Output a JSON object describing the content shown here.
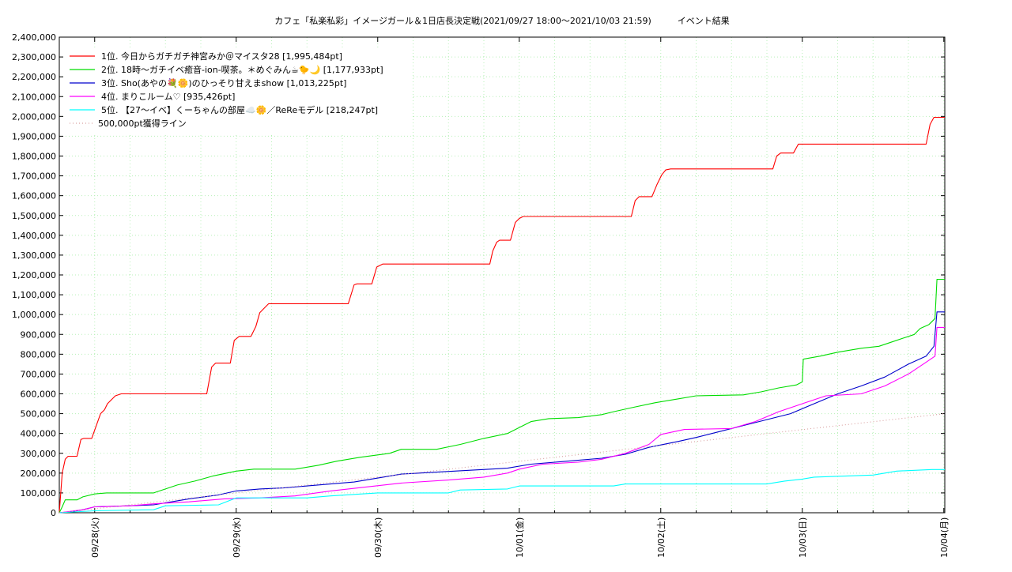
{
  "chart_data": {
    "type": "line",
    "title": "カフェ「私楽私彩」イメージガール＆1日店長決定戦(2021/09/27 18:00～2021/10/03 21:59)　　　イベント結果",
    "xlabel": "",
    "ylabel": "",
    "ylim": [
      0,
      2400000
    ],
    "yticks": [
      "0",
      "100,000",
      "200,000",
      "300,000",
      "400,000",
      "500,000",
      "600,000",
      "700,000",
      "800,000",
      "900,000",
      "1,000,000",
      "1,100,000",
      "1,200,000",
      "1,300,000",
      "1,400,000",
      "1,500,000",
      "1,600,000",
      "1,700,000",
      "1,800,000",
      "1,900,000",
      "2,000,000",
      "2,100,000",
      "2,200,000",
      "2,300,000",
      "2,400,000"
    ],
    "x_start": "2021-09-27 18:00",
    "x_end": "2021-10-04 00:10",
    "xticks": [
      {
        "date": "2021-09-28 00:00",
        "label": "09/28(火)"
      },
      {
        "date": "2021-09-29 00:00",
        "label": "09/29(水)"
      },
      {
        "date": "2021-09-30 00:00",
        "label": "09/30(木)"
      },
      {
        "date": "2021-10-01 00:00",
        "label": "10/01(金)"
      },
      {
        "date": "2021-10-02 00:00",
        "label": "10/02(土)"
      },
      {
        "date": "2021-10-03 00:00",
        "label": "10/03(日)"
      },
      {
        "date": "2021-10-04 00:00",
        "label": "10/04(月)"
      }
    ],
    "grid": true,
    "legend_position": "top-left",
    "series": [
      {
        "name": "1位. 今日からガチガチ神宮みか＠マイスタ28 [1,995,484pt]",
        "color": "#ff0000",
        "points": [
          [
            "2021-09-27 18:00",
            0
          ],
          [
            "2021-09-27 18:30",
            200000
          ],
          [
            "2021-09-27 19:00",
            270000
          ],
          [
            "2021-09-27 19:30",
            285000
          ],
          [
            "2021-09-27 21:00",
            285000
          ],
          [
            "2021-09-27 21:40",
            370000
          ],
          [
            "2021-09-27 22:10",
            375000
          ],
          [
            "2021-09-27 23:30",
            375000
          ],
          [
            "2021-09-28 01:00",
            500000
          ],
          [
            "2021-09-28 01:40",
            520000
          ],
          [
            "2021-09-28 02:10",
            550000
          ],
          [
            "2021-09-28 03:30",
            590000
          ],
          [
            "2021-09-28 04:30",
            600000
          ],
          [
            "2021-09-28 19:00",
            600000
          ],
          [
            "2021-09-28 19:50",
            735000
          ],
          [
            "2021-09-28 20:30",
            755000
          ],
          [
            "2021-09-28 23:00",
            755000
          ],
          [
            "2021-09-28 23:40",
            870000
          ],
          [
            "2021-09-29 00:30",
            890000
          ],
          [
            "2021-09-29 02:30",
            890000
          ],
          [
            "2021-09-29 03:20",
            940000
          ],
          [
            "2021-09-29 04:00",
            1010000
          ],
          [
            "2021-09-29 04:40",
            1030000
          ],
          [
            "2021-09-29 05:30",
            1055000
          ],
          [
            "2021-09-29 19:00",
            1055000
          ],
          [
            "2021-09-29 20:00",
            1150000
          ],
          [
            "2021-09-29 20:30",
            1155000
          ],
          [
            "2021-09-29 23:00",
            1155000
          ],
          [
            "2021-09-29 23:50",
            1240000
          ],
          [
            "2021-09-30 00:50",
            1255000
          ],
          [
            "2021-09-30 19:00",
            1255000
          ],
          [
            "2021-09-30 19:30",
            1320000
          ],
          [
            "2021-09-30 20:10",
            1365000
          ],
          [
            "2021-09-30 20:40",
            1375000
          ],
          [
            "2021-09-30 22:30",
            1375000
          ],
          [
            "2021-09-30 23:20",
            1465000
          ],
          [
            "2021-10-01 00:00",
            1485000
          ],
          [
            "2021-10-01 00:40",
            1495000
          ],
          [
            "2021-10-01 19:00",
            1495000
          ],
          [
            "2021-10-01 19:40",
            1575000
          ],
          [
            "2021-10-01 20:20",
            1595000
          ],
          [
            "2021-10-01 22:30",
            1595000
          ],
          [
            "2021-10-01 23:20",
            1655000
          ],
          [
            "2021-10-02 00:10",
            1705000
          ],
          [
            "2021-10-02 00:50",
            1730000
          ],
          [
            "2021-10-02 01:40",
            1735000
          ],
          [
            "2021-10-02 19:00",
            1735000
          ],
          [
            "2021-10-02 19:40",
            1800000
          ],
          [
            "2021-10-02 20:20",
            1815000
          ],
          [
            "2021-10-02 22:30",
            1815000
          ],
          [
            "2021-10-02 23:20",
            1860000
          ],
          [
            "2021-10-03 21:00",
            1860000
          ],
          [
            "2021-10-03 21:40",
            1960000
          ],
          [
            "2021-10-03 22:20",
            1995484
          ],
          [
            "2021-10-04 00:10",
            1995484
          ]
        ]
      },
      {
        "name": "2位. 18時〜ガチイベ癒音-ion-喫茶。＊めぐみん☕🐤🌙 [1,177,933pt]",
        "color": "#00dd00",
        "points": [
          [
            "2021-09-27 18:00",
            0
          ],
          [
            "2021-09-27 18:30",
            30000
          ],
          [
            "2021-09-27 19:00",
            65000
          ],
          [
            "2021-09-27 21:00",
            65000
          ],
          [
            "2021-09-27 22:00",
            80000
          ],
          [
            "2021-09-28 00:00",
            95000
          ],
          [
            "2021-09-28 02:00",
            100000
          ],
          [
            "2021-09-28 10:00",
            100000
          ],
          [
            "2021-09-28 12:00",
            120000
          ],
          [
            "2021-09-28 14:00",
            140000
          ],
          [
            "2021-09-28 17:00",
            160000
          ],
          [
            "2021-09-28 20:00",
            185000
          ],
          [
            "2021-09-29 00:00",
            210000
          ],
          [
            "2021-09-29 03:00",
            220000
          ],
          [
            "2021-09-29 10:00",
            220000
          ],
          [
            "2021-09-29 14:00",
            240000
          ],
          [
            "2021-09-29 17:00",
            260000
          ],
          [
            "2021-09-29 21:00",
            280000
          ],
          [
            "2021-09-30 02:00",
            300000
          ],
          [
            "2021-09-30 04:00",
            320000
          ],
          [
            "2021-09-30 10:00",
            320000
          ],
          [
            "2021-09-30 14:00",
            345000
          ],
          [
            "2021-09-30 18:00",
            375000
          ],
          [
            "2021-09-30 22:00",
            400000
          ],
          [
            "2021-10-01 00:00",
            430000
          ],
          [
            "2021-10-01 02:00",
            460000
          ],
          [
            "2021-10-01 05:00",
            475000
          ],
          [
            "2021-10-01 10:00",
            480000
          ],
          [
            "2021-10-01 14:00",
            495000
          ],
          [
            "2021-10-01 16:00",
            510000
          ],
          [
            "2021-10-01 19:00",
            530000
          ],
          [
            "2021-10-01 23:00",
            555000
          ],
          [
            "2021-10-02 03:00",
            575000
          ],
          [
            "2021-10-02 06:00",
            590000
          ],
          [
            "2021-10-02 14:00",
            595000
          ],
          [
            "2021-10-02 17:00",
            610000
          ],
          [
            "2021-10-02 20:00",
            630000
          ],
          [
            "2021-10-02 23:00",
            645000
          ],
          [
            "2021-10-03 00:00",
            660000
          ],
          [
            "2021-10-03 00:10",
            775000
          ],
          [
            "2021-10-03 03:00",
            790000
          ],
          [
            "2021-10-03 06:00",
            810000
          ],
          [
            "2021-10-03 10:00",
            830000
          ],
          [
            "2021-10-03 13:00",
            840000
          ],
          [
            "2021-10-03 15:00",
            860000
          ],
          [
            "2021-10-03 19:00",
            900000
          ],
          [
            "2021-10-03 20:00",
            930000
          ],
          [
            "2021-10-03 21:30",
            950000
          ],
          [
            "2021-10-03 22:30",
            980000
          ],
          [
            "2021-10-03 22:50",
            1177933
          ],
          [
            "2021-10-04 00:10",
            1177933
          ]
        ]
      },
      {
        "name": "3位. Sho(あやの💐🌼)のひっそり甘えまshow [1,013,225pt]",
        "color": "#0000cc",
        "points": [
          [
            "2021-09-27 18:00",
            0
          ],
          [
            "2021-09-27 20:00",
            5000
          ],
          [
            "2021-09-27 22:00",
            15000
          ],
          [
            "2021-09-28 00:00",
            30000
          ],
          [
            "2021-09-28 06:00",
            35000
          ],
          [
            "2021-09-28 10:00",
            40000
          ],
          [
            "2021-09-28 13:00",
            55000
          ],
          [
            "2021-09-28 16:00",
            70000
          ],
          [
            "2021-09-28 21:00",
            90000
          ],
          [
            "2021-09-29 00:00",
            110000
          ],
          [
            "2021-09-29 04:00",
            120000
          ],
          [
            "2021-09-29 08:00",
            125000
          ],
          [
            "2021-09-29 12:00",
            135000
          ],
          [
            "2021-09-29 16:00",
            145000
          ],
          [
            "2021-09-29 20:00",
            155000
          ],
          [
            "2021-09-30 00:00",
            175000
          ],
          [
            "2021-09-30 04:00",
            195000
          ],
          [
            "2021-09-30 10:00",
            205000
          ],
          [
            "2021-09-30 16:00",
            215000
          ],
          [
            "2021-09-30 22:00",
            225000
          ],
          [
            "2021-10-01 02:00",
            245000
          ],
          [
            "2021-10-01 08:00",
            260000
          ],
          [
            "2021-10-01 14:00",
            275000
          ],
          [
            "2021-10-01 18:00",
            295000
          ],
          [
            "2021-10-01 22:00",
            330000
          ],
          [
            "2021-10-02 03:00",
            360000
          ],
          [
            "2021-10-02 06:00",
            380000
          ],
          [
            "2021-10-02 10:00",
            410000
          ],
          [
            "2021-10-02 14:00",
            440000
          ],
          [
            "2021-10-02 18:00",
            470000
          ],
          [
            "2021-10-02 22:00",
            500000
          ],
          [
            "2021-10-03 02:00",
            550000
          ],
          [
            "2021-10-03 06:00",
            600000
          ],
          [
            "2021-10-03 10:00",
            640000
          ],
          [
            "2021-10-03 14:00",
            685000
          ],
          [
            "2021-10-03 18:00",
            750000
          ],
          [
            "2021-10-03 21:00",
            790000
          ],
          [
            "2021-10-03 22:20",
            840000
          ],
          [
            "2021-10-03 22:50",
            1013225
          ],
          [
            "2021-10-04 00:10",
            1013225
          ]
        ]
      },
      {
        "name": "4位. まりこルーム♡ [935,426pt]",
        "color": "#ff00ff",
        "points": [
          [
            "2021-09-27 18:00",
            0
          ],
          [
            "2021-09-27 22:00",
            15000
          ],
          [
            "2021-09-28 00:00",
            30000
          ],
          [
            "2021-09-28 06:00",
            35000
          ],
          [
            "2021-09-28 10:00",
            45000
          ],
          [
            "2021-09-28 16:00",
            55000
          ],
          [
            "2021-09-28 22:00",
            70000
          ],
          [
            "2021-09-29 04:00",
            75000
          ],
          [
            "2021-09-29 10:00",
            85000
          ],
          [
            "2021-09-29 16:00",
            110000
          ],
          [
            "2021-09-29 22:00",
            130000
          ],
          [
            "2021-09-30 04:00",
            150000
          ],
          [
            "2021-09-30 12:00",
            165000
          ],
          [
            "2021-09-30 18:00",
            180000
          ],
          [
            "2021-09-30 22:00",
            200000
          ],
          [
            "2021-10-01 00:00",
            220000
          ],
          [
            "2021-10-01 04:00",
            245000
          ],
          [
            "2021-10-01 10:00",
            255000
          ],
          [
            "2021-10-01 14:00",
            270000
          ],
          [
            "2021-10-01 18:00",
            300000
          ],
          [
            "2021-10-01 22:00",
            345000
          ],
          [
            "2021-10-02 00:00",
            395000
          ],
          [
            "2021-10-02 04:00",
            420000
          ],
          [
            "2021-10-02 12:00",
            425000
          ],
          [
            "2021-10-02 16:00",
            460000
          ],
          [
            "2021-10-02 20:00",
            510000
          ],
          [
            "2021-10-03 00:00",
            550000
          ],
          [
            "2021-10-03 04:00",
            590000
          ],
          [
            "2021-10-03 10:00",
            600000
          ],
          [
            "2021-10-03 14:00",
            640000
          ],
          [
            "2021-10-03 18:00",
            700000
          ],
          [
            "2021-10-03 21:00",
            760000
          ],
          [
            "2021-10-03 22:30",
            790000
          ],
          [
            "2021-10-03 22:50",
            935426
          ],
          [
            "2021-10-04 00:10",
            935426
          ]
        ]
      },
      {
        "name": "5位. 【27〜イベ】くーちゃんの部屋☁️🌼／ReReモデル [218,247pt]",
        "color": "#00ffff",
        "points": [
          [
            "2021-09-27 18:00",
            0
          ],
          [
            "2021-09-28 00:00",
            10000
          ],
          [
            "2021-09-28 10:00",
            15000
          ],
          [
            "2021-09-28 12:00",
            35000
          ],
          [
            "2021-09-28 21:00",
            40000
          ],
          [
            "2021-09-29 00:00",
            75000
          ],
          [
            "2021-09-29 12:00",
            75000
          ],
          [
            "2021-09-29 16:00",
            85000
          ],
          [
            "2021-09-30 00:00",
            100000
          ],
          [
            "2021-09-30 12:00",
            100000
          ],
          [
            "2021-09-30 14:00",
            115000
          ],
          [
            "2021-09-30 22:00",
            120000
          ],
          [
            "2021-10-01 00:00",
            135000
          ],
          [
            "2021-10-01 16:00",
            135000
          ],
          [
            "2021-10-01 18:00",
            145000
          ],
          [
            "2021-10-02 18:00",
            145000
          ],
          [
            "2021-10-02 21:00",
            160000
          ],
          [
            "2021-10-03 00:00",
            170000
          ],
          [
            "2021-10-03 02:00",
            180000
          ],
          [
            "2021-10-03 12:00",
            190000
          ],
          [
            "2021-10-03 14:00",
            200000
          ],
          [
            "2021-10-03 16:00",
            210000
          ],
          [
            "2021-10-03 22:00",
            218247
          ],
          [
            "2021-10-04 00:10",
            218247
          ]
        ]
      },
      {
        "name": "500,000pt獲得ライン",
        "color": "#d9a0a0",
        "dashed": true,
        "points": [
          [
            "2021-09-27 18:00",
            0
          ],
          [
            "2021-10-04 00:10",
            500000
          ]
        ]
      }
    ]
  }
}
